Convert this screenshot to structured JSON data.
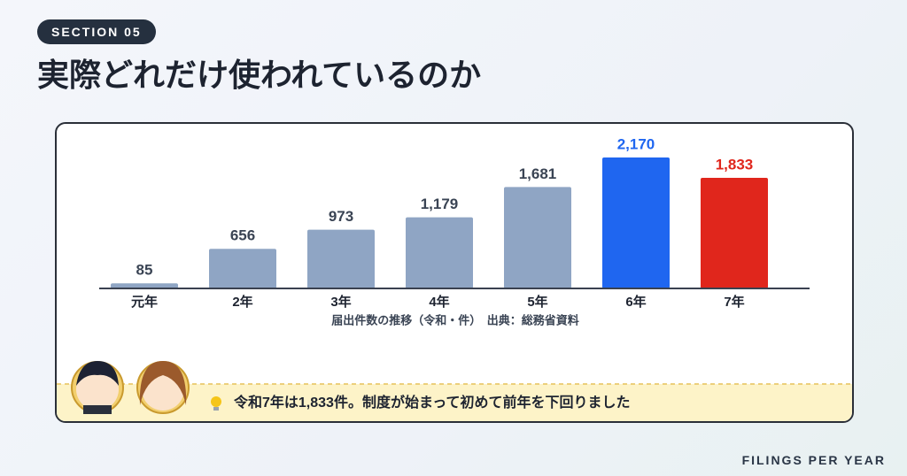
{
  "section": "SECTION 05",
  "title": "実際どれだけ使われているのか",
  "chart_data": {
    "type": "bar",
    "categories": [
      "元年",
      "2年",
      "3年",
      "4年",
      "5年",
      "6年",
      "7年"
    ],
    "values": [
      85,
      656,
      973,
      1179,
      1681,
      2170,
      1833
    ],
    "value_labels": [
      "85",
      "656",
      "973",
      "1,179",
      "1,681",
      "2,170",
      "1,833"
    ],
    "colors": [
      "#8fa5c4",
      "#8fa5c4",
      "#8fa5c4",
      "#8fa5c4",
      "#8fa5c4",
      "#1f66f0",
      "#e0261c"
    ],
    "caption": "届出件数の推移（令和・件）　出典：総務省資料"
  },
  "note": "令和7年は1,833件。制度が始まって初めて前年を下回りました",
  "footer": "FILINGS PER YEAR"
}
